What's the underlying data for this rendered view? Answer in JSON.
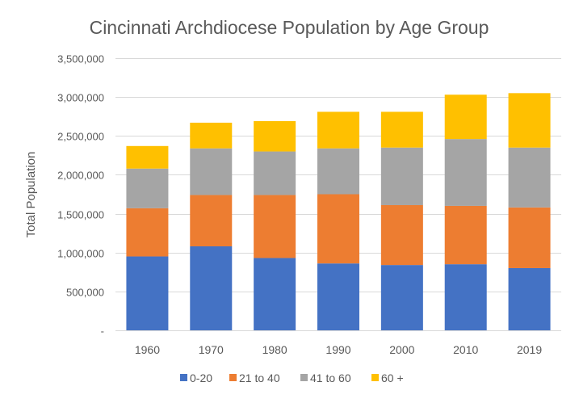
{
  "chart_data": {
    "type": "bar",
    "stacked": true,
    "title": "Cincinnati Archdiocese Population by Age Group",
    "xlabel": "",
    "ylabel": "Total Population",
    "categories": [
      "1960",
      "1970",
      "1980",
      "1990",
      "2000",
      "2010",
      "2019"
    ],
    "ylim": [
      0,
      3500000
    ],
    "yticks": [
      0,
      500000,
      1000000,
      1500000,
      2000000,
      2500000,
      3000000,
      3500000
    ],
    "ytick_labels": [
      "-",
      "500,000",
      "1,000,000",
      "1,500,000",
      "2,000,000",
      "2,500,000",
      "3,000,000",
      "3,500,000"
    ],
    "grid": true,
    "legend_position": "bottom",
    "series": [
      {
        "name": "0-20",
        "color": "#4472C4",
        "values": [
          950000,
          1080000,
          930000,
          860000,
          840000,
          850000,
          800000
        ]
      },
      {
        "name": "21 to 40",
        "color": "#ED7D31",
        "values": [
          620000,
          660000,
          810000,
          890000,
          770000,
          750000,
          780000
        ]
      },
      {
        "name": "41 to 60",
        "color": "#A5A5A5",
        "values": [
          510000,
          600000,
          560000,
          590000,
          740000,
          860000,
          770000
        ]
      },
      {
        "name": "60 +",
        "color": "#FFC000",
        "values": [
          290000,
          330000,
          390000,
          470000,
          460000,
          570000,
          700000
        ]
      }
    ]
  }
}
